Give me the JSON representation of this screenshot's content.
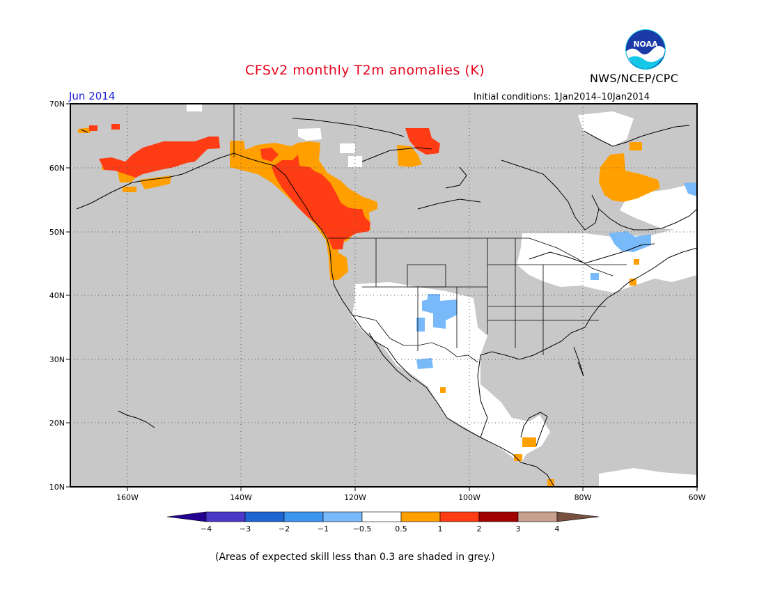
{
  "header": {
    "title": "CFSv2 monthly T2m anomalies (K)",
    "month": "Jun 2014",
    "initial_conditions": "Initial conditions: 1Jan2014–10Jan2014",
    "agency": "NWS/NCEP/CPC",
    "logo_text": "NOAA"
  },
  "axes": {
    "lat_labels": [
      "70N",
      "60N",
      "50N",
      "40N",
      "30N",
      "20N",
      "10N"
    ],
    "lon_labels": [
      "160W",
      "140W",
      "120W",
      "100W",
      "80W",
      "60W"
    ]
  },
  "colorbar": {
    "labels": [
      "−4",
      "−3",
      "−2",
      "−1",
      "−0.5",
      "0.5",
      "1",
      "2",
      "3",
      "4"
    ],
    "colors": [
      "#240090",
      "#4a38c8",
      "#1e64d2",
      "#3c96f0",
      "#78b9fa",
      "#ffffff",
      "#ffa000",
      "#ff3c14",
      "#a00000",
      "#c8a08c",
      "#785040"
    ]
  },
  "colors": {
    "low_skill_grey": "#c8c8c8",
    "land_white": "#ffffff",
    "warm_05_1": "#ffa000",
    "warm_1_2": "#ff3c14",
    "cool_05_1": "#78b9fa",
    "title": "#e8001a",
    "month": "#1f1fd8"
  },
  "footnote": "(Areas of expected skill less than 0.3 are shaded in grey.)"
}
